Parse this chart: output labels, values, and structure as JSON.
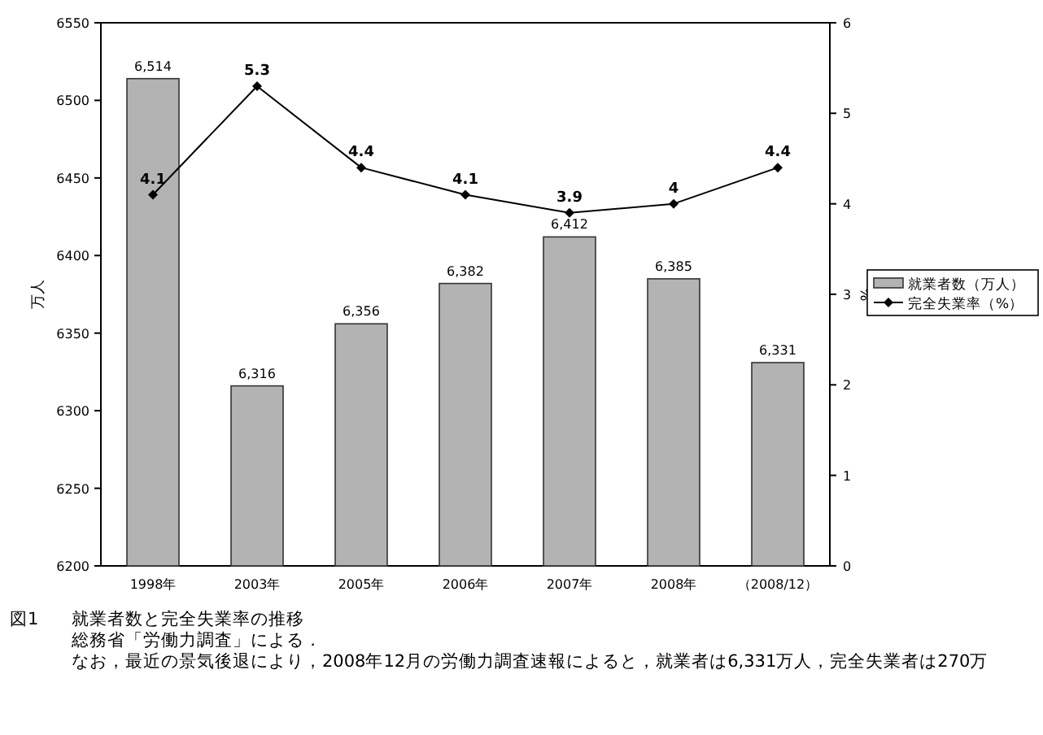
{
  "chart_data": {
    "type": "bar",
    "categories": [
      "1998年",
      "2003年",
      "2005年",
      "2006年",
      "2007年",
      "2008年",
      "（2008/12）"
    ],
    "series": [
      {
        "name": "就業者数（万人）",
        "color": "#b3b3b3",
        "values": [
          6514,
          6316,
          6356,
          6382,
          6412,
          6385,
          6331
        ],
        "value_labels": [
          "6,514",
          "6,316",
          "6,356",
          "6,382",
          "6,412",
          "6,385",
          "6,331"
        ]
      },
      {
        "name": "完全失業率（%）",
        "type": "line",
        "axis": "y2",
        "color": "#000000",
        "marker": "diamond",
        "line_style": "solid",
        "values": [
          4.1,
          5.3,
          4.4,
          4.1,
          3.9,
          4,
          4.4
        ],
        "value_labels": [
          "4.1",
          "5.3",
          "4.4",
          "4.1",
          "3.9",
          "4",
          "4.4"
        ]
      }
    ],
    "ylabel": "万人",
    "y2label": "%",
    "ylim": [
      6200,
      6550
    ],
    "yticks": [
      6200,
      6250,
      6300,
      6350,
      6400,
      6450,
      6500,
      6550
    ],
    "y2lim": [
      0,
      6
    ],
    "y2ticks": [
      0,
      1,
      2,
      3,
      4,
      5,
      6
    ],
    "legend": "right",
    "grid": false,
    "annotations": [
      "図1",
      "就業者数と完全失業率の推移",
      "総務省「労働力調査」による．",
      "なお，最近の景気後退により，2008年12月の労働力調査速報によると，就業者は6,331万人，完全失業者は270万"
    ]
  }
}
